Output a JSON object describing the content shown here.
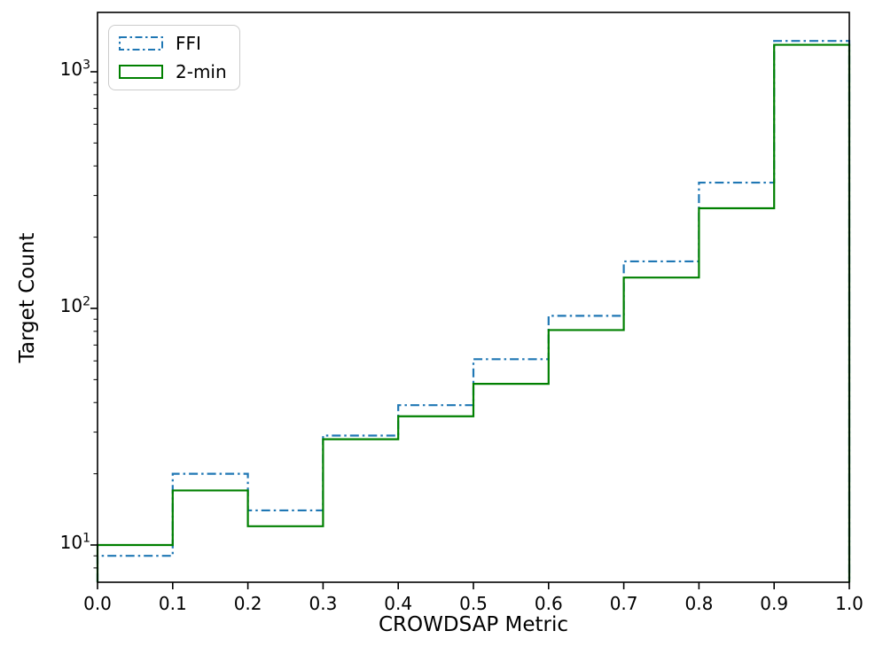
{
  "figure": {
    "background": "#ffffff"
  },
  "chart_data": {
    "type": "step-histogram",
    "xlabel": "CROWDSAP Metric",
    "ylabel": "Target Count",
    "x_scale": "linear",
    "y_scale": "log",
    "xlim": [
      0.0,
      1.0
    ],
    "ylim": [
      6.96,
      1782
    ],
    "grid": false,
    "bin_edges": [
      0.0,
      0.1,
      0.2,
      0.3,
      0.4,
      0.5,
      0.6,
      0.7,
      0.8,
      0.9,
      1.0
    ],
    "x_ticks": [
      "0.0",
      "0.1",
      "0.2",
      "0.3",
      "0.4",
      "0.5",
      "0.6",
      "0.7",
      "0.8",
      "0.9",
      "1.0"
    ],
    "y_major_ticks": [
      {
        "value": 10,
        "exponent": 1
      },
      {
        "value": 100,
        "exponent": 2
      },
      {
        "value": 1000,
        "exponent": 3
      }
    ],
    "y_minor_ticks": [
      7,
      8,
      9,
      20,
      30,
      40,
      50,
      60,
      70,
      80,
      90,
      200,
      300,
      400,
      500,
      600,
      700,
      800,
      900
    ],
    "series": [
      {
        "name": "FFI",
        "color": "#1f77b4",
        "linestyle": "dashdot",
        "values": [
          9,
          20,
          14,
          29,
          39,
          61,
          93,
          158,
          340,
          1350
        ]
      },
      {
        "name": "2-min",
        "color": "#008000",
        "linestyle": "solid",
        "values": [
          10,
          17,
          12,
          28,
          35,
          48,
          81,
          135,
          265,
          1300
        ]
      }
    ],
    "legend": {
      "position": "upper left",
      "labels": [
        "FFI",
        "2-min"
      ]
    }
  }
}
